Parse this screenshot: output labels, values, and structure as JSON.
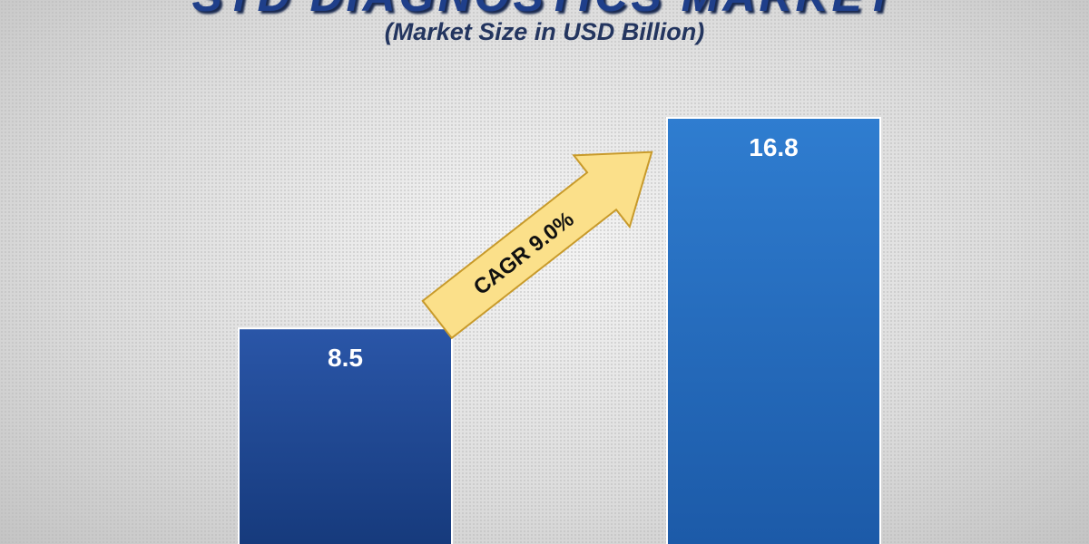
{
  "chart_data": {
    "type": "bar",
    "title": "STD DIAGNOSTICS MARKET",
    "subtitle": "(Market Size in USD Billion)",
    "categories": [
      "",
      ""
    ],
    "values": [
      8.5,
      16.8
    ],
    "ylim": [
      0,
      22
    ],
    "grid": false,
    "annotation": "CAGR 9.0%",
    "colors": {
      "bar1": "#1f4fa0",
      "bar2": "#2a74c6",
      "arrow": "#fbe08a",
      "arrow_border": "#c89a2a"
    }
  }
}
